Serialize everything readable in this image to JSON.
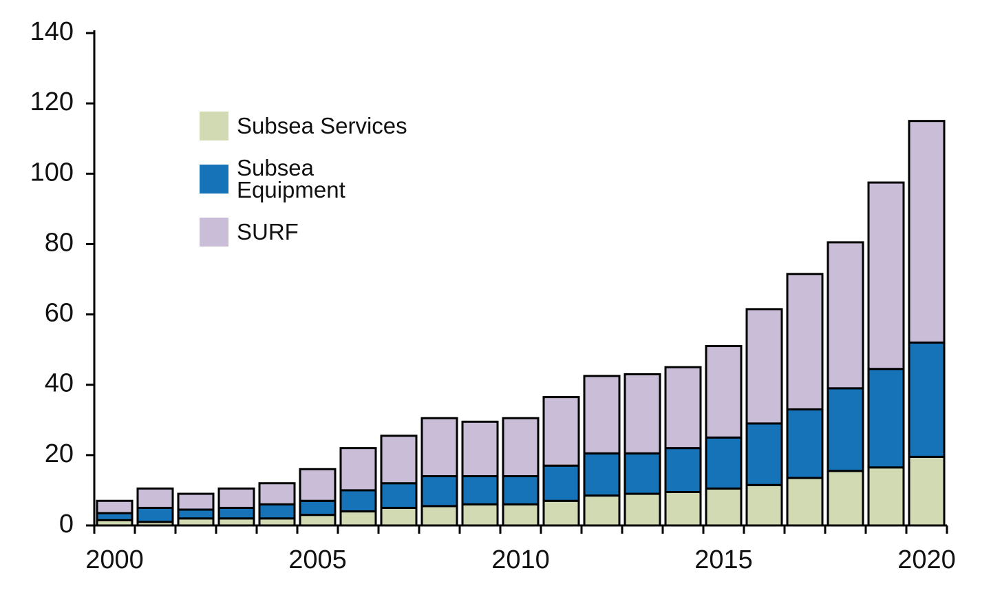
{
  "chart_data": {
    "type": "stacked-bar",
    "categories": [
      "2000",
      null,
      null,
      null,
      null,
      "2005",
      null,
      null,
      null,
      null,
      "2010",
      null,
      null,
      null,
      null,
      "2015",
      null,
      null,
      null,
      null,
      "2020"
    ],
    "series": [
      {
        "name": "Subsea Services",
        "color": "#d2dab4",
        "values": [
          1.5,
          1,
          2,
          2,
          2,
          3,
          4,
          5,
          5.5,
          6,
          6,
          7,
          8.5,
          9,
          9.5,
          10.5,
          11.5,
          13.5,
          15.5,
          16.5,
          19.5
        ]
      },
      {
        "name": "Subsea Equipment",
        "color": "#1673b8",
        "values": [
          2,
          4,
          2.5,
          3,
          4,
          4,
          6,
          7,
          8.5,
          8,
          8,
          10,
          12,
          11.5,
          12.5,
          14.5,
          17.5,
          19.5,
          23.5,
          28,
          32.5
        ]
      },
      {
        "name": "SURF",
        "color": "#cabdd8",
        "values": [
          3.5,
          5.5,
          4.5,
          5.5,
          6,
          9,
          12,
          13.5,
          16.5,
          15.5,
          16.5,
          19.5,
          22,
          22.5,
          23,
          26,
          32.5,
          38.5,
          41.5,
          53,
          63
        ]
      }
    ],
    "ylim": [
      0,
      140
    ],
    "yticks": [
      0,
      20,
      40,
      60,
      80,
      100,
      120,
      140
    ]
  }
}
